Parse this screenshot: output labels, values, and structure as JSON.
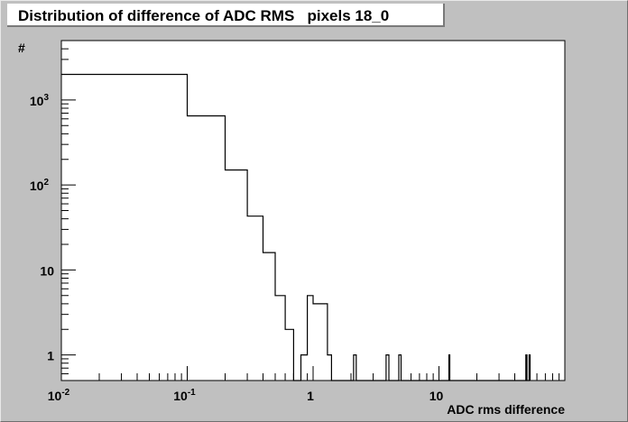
{
  "title": "Distribution of difference of ADC RMS   pixels 18_0",
  "chart_data": {
    "type": "histogram",
    "title": "Distribution of difference of ADC RMS   pixels 18_0",
    "xlabel": "ADC rms difference",
    "ylabel": "#",
    "x_scale": "log",
    "y_scale": "log",
    "xlim": [
      0.01,
      100
    ],
    "ylim": [
      0.5,
      5000
    ],
    "x_ticks": [
      {
        "value": 0.01,
        "base": "10",
        "exp": "-2"
      },
      {
        "value": 0.1,
        "base": "10",
        "exp": "-1"
      },
      {
        "value": 1,
        "base": "1",
        "exp": ""
      },
      {
        "value": 10,
        "base": "10",
        "exp": ""
      }
    ],
    "y_ticks": [
      {
        "value": 1,
        "base": "1",
        "exp": ""
      },
      {
        "value": 10,
        "base": "10",
        "exp": ""
      },
      {
        "value": 100,
        "base": "10",
        "exp": "2"
      },
      {
        "value": 1000,
        "base": "10",
        "exp": "3"
      }
    ],
    "grid": false,
    "legend": "none",
    "bins": [
      {
        "lo": 0.01,
        "hi": 0.1,
        "count": 2000
      },
      {
        "lo": 0.1,
        "hi": 0.2,
        "count": 650
      },
      {
        "lo": 0.2,
        "hi": 0.3,
        "count": 150
      },
      {
        "lo": 0.3,
        "hi": 0.4,
        "count": 43
      },
      {
        "lo": 0.4,
        "hi": 0.5,
        "count": 16
      },
      {
        "lo": 0.5,
        "hi": 0.6,
        "count": 5
      },
      {
        "lo": 0.6,
        "hi": 0.7,
        "count": 2
      },
      {
        "lo": 0.7,
        "hi": 0.8,
        "count": 0
      },
      {
        "lo": 0.8,
        "hi": 0.9,
        "count": 1
      },
      {
        "lo": 0.9,
        "hi": 1.0,
        "count": 5
      },
      {
        "lo": 1.0,
        "hi": 1.1,
        "count": 4
      },
      {
        "lo": 1.1,
        "hi": 1.3,
        "count": 4
      },
      {
        "lo": 1.3,
        "hi": 1.4,
        "count": 1
      },
      {
        "lo": 1.4,
        "hi": 2.1,
        "count": 0
      },
      {
        "lo": 2.1,
        "hi": 2.2,
        "count": 1
      },
      {
        "lo": 3.8,
        "hi": 4.0,
        "count": 1
      },
      {
        "lo": 4.8,
        "hi": 5.0,
        "count": 1
      },
      {
        "lo": 12.0,
        "hi": 12.2,
        "count": 1
      },
      {
        "lo": 49.0,
        "hi": 50.0,
        "count": 1
      },
      {
        "lo": 52.0,
        "hi": 53.0,
        "count": 1
      }
    ]
  }
}
